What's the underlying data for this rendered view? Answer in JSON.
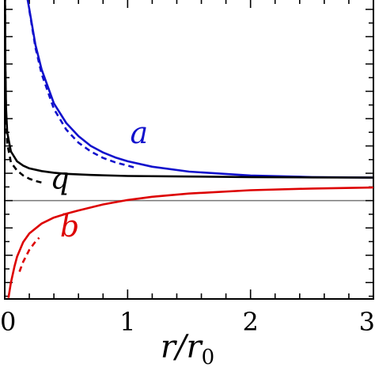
{
  "chart_data": {
    "type": "line",
    "xlabel": "r/r0",
    "xlabel_parts": {
      "r": "r",
      "slash": "/",
      "r0_base": "r",
      "r0_sub": "0"
    },
    "xlim": [
      0,
      3
    ],
    "ylim": [
      -1.8,
      3.7
    ],
    "x_ticks": [
      "0",
      "1",
      "2",
      "3"
    ],
    "grid": false,
    "reference_line_y": 0,
    "series": [
      {
        "name": "a",
        "style": "solid",
        "color": "#1111cc",
        "x": [
          0.18,
          0.2,
          0.25,
          0.3,
          0.4,
          0.5,
          0.6,
          0.7,
          0.8,
          0.9,
          1.0,
          1.2,
          1.5,
          2.0,
          2.5,
          3.0
        ],
        "y": [
          3.75,
          3.5,
          2.85,
          2.4,
          1.78,
          1.42,
          1.18,
          1.0,
          0.88,
          0.79,
          0.72,
          0.62,
          0.53,
          0.46,
          0.43,
          0.42
        ]
      },
      {
        "name": "",
        "style": "dashed",
        "color": "#1111cc",
        "x": [
          0.2,
          0.25,
          0.3,
          0.4,
          0.5,
          0.6,
          0.7,
          0.8,
          0.9,
          1.0,
          1.05
        ],
        "y": [
          3.48,
          2.8,
          2.32,
          1.68,
          1.3,
          1.06,
          0.9,
          0.78,
          0.7,
          0.64,
          0.61
        ]
      },
      {
        "name": "q",
        "style": "solid",
        "color": "#000000",
        "x": [
          0.002,
          0.005,
          0.01,
          0.02,
          0.05,
          0.1,
          0.15,
          0.2,
          0.3,
          0.4,
          0.5,
          0.7,
          1.0,
          1.5,
          2.0,
          2.5,
          3.0
        ],
        "y": [
          3.75,
          2.5,
          1.7,
          1.25,
          0.9,
          0.72,
          0.64,
          0.59,
          0.54,
          0.51,
          0.49,
          0.47,
          0.45,
          0.44,
          0.43,
          0.425,
          0.42
        ]
      },
      {
        "name": "",
        "style": "dashed",
        "color": "#000000",
        "x": [
          0.002,
          0.005,
          0.01,
          0.02,
          0.05,
          0.1,
          0.15,
          0.2,
          0.25,
          0.3
        ],
        "y": [
          3.75,
          2.4,
          1.55,
          1.05,
          0.7,
          0.55,
          0.46,
          0.4,
          0.36,
          0.33
        ]
      },
      {
        "name": "b",
        "style": "solid",
        "color": "#dd0000",
        "x": [
          0.03,
          0.05,
          0.08,
          0.1,
          0.15,
          0.2,
          0.3,
          0.4,
          0.5,
          0.6,
          0.8,
          1.0,
          1.2,
          1.5,
          2.0,
          2.5,
          3.0
        ],
        "y": [
          -1.78,
          -1.5,
          -1.2,
          -1.03,
          -0.76,
          -0.6,
          -0.42,
          -0.31,
          -0.24,
          -0.18,
          -0.07,
          0.01,
          0.07,
          0.13,
          0.19,
          0.22,
          0.24
        ]
      },
      {
        "name": "",
        "style": "dashed",
        "color": "#dd0000",
        "x": [
          0.12,
          0.15,
          0.2,
          0.25,
          0.28
        ],
        "y": [
          -1.3,
          -1.12,
          -0.9,
          -0.75,
          -0.68
        ]
      }
    ],
    "annotations": [
      {
        "text": "a",
        "x": 1.02,
        "y": 1.05,
        "color": "#1111cc"
      },
      {
        "text": "q",
        "x": 0.37,
        "y": 0.22,
        "color": "#000000"
      },
      {
        "text": "b",
        "x": 0.45,
        "y": -0.66,
        "color": "#dd0000"
      }
    ]
  }
}
